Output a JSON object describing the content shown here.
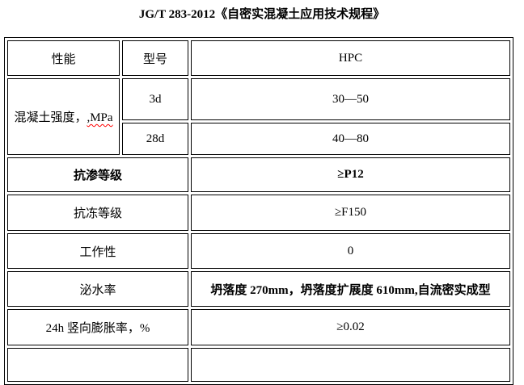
{
  "title": "JG/T 283-2012《自密实混凝土应用技术规程》",
  "table": {
    "header": {
      "performance": "性能",
      "model": "型号",
      "product": "HPC"
    },
    "strength": {
      "label_prefix": "混凝土强度，",
      "label_typo": ",MPa",
      "ages": [
        {
          "age": "3d",
          "value": "30—50"
        },
        {
          "age": "28d",
          "value": "40—80"
        }
      ]
    },
    "rows": [
      {
        "label": "抗渗等级",
        "value": "≥P12"
      },
      {
        "label": "抗冻等级",
        "value": "≥F150"
      },
      {
        "label": "工作性",
        "value": "0"
      },
      {
        "label": "泌水率",
        "value": "坍落度 270mm，坍落度扩展度 610mm,自流密实成型"
      },
      {
        "label": "24h 竖向膨胀率，%",
        "value": "≥0.02"
      }
    ]
  },
  "colors": {
    "text": "#000000",
    "border": "#000000",
    "spellcheck_underline": "#ff0000",
    "background": "#ffffff"
  }
}
